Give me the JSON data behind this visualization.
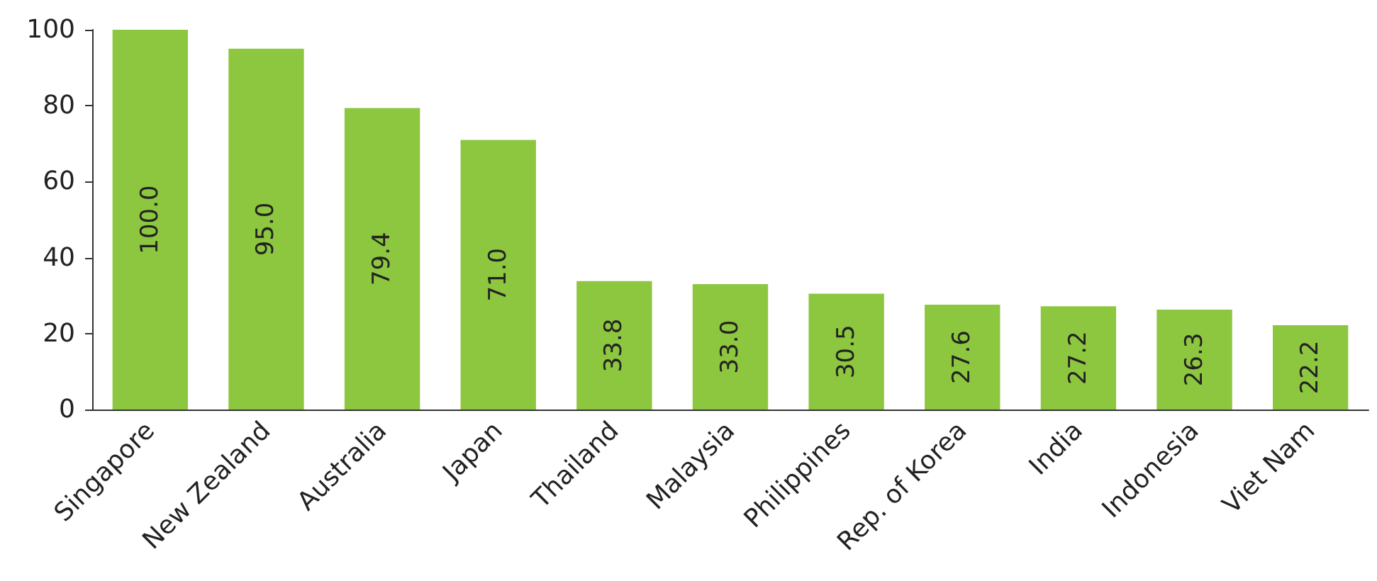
{
  "chart_data": {
    "type": "bar",
    "categories": [
      "Singapore",
      "New Zealand",
      "Australia",
      "Japan",
      "Thailand",
      "Malaysia",
      "Philippines",
      "Rep. of Korea",
      "India",
      "Indonesia",
      "Viet Nam"
    ],
    "values": [
      100.0,
      95.0,
      79.4,
      71.0,
      33.8,
      33.0,
      30.5,
      27.6,
      27.2,
      26.3,
      22.2
    ],
    "value_labels": [
      "100.0",
      "95.0",
      "79.4",
      "71.0",
      "33.8",
      "33.0",
      "30.5",
      "27.6",
      "27.2",
      "26.3",
      "22.2"
    ],
    "color": "#8dc63f",
    "ylim": [
      0,
      100
    ],
    "yticks": [
      0,
      20,
      40,
      60,
      80,
      100
    ]
  }
}
